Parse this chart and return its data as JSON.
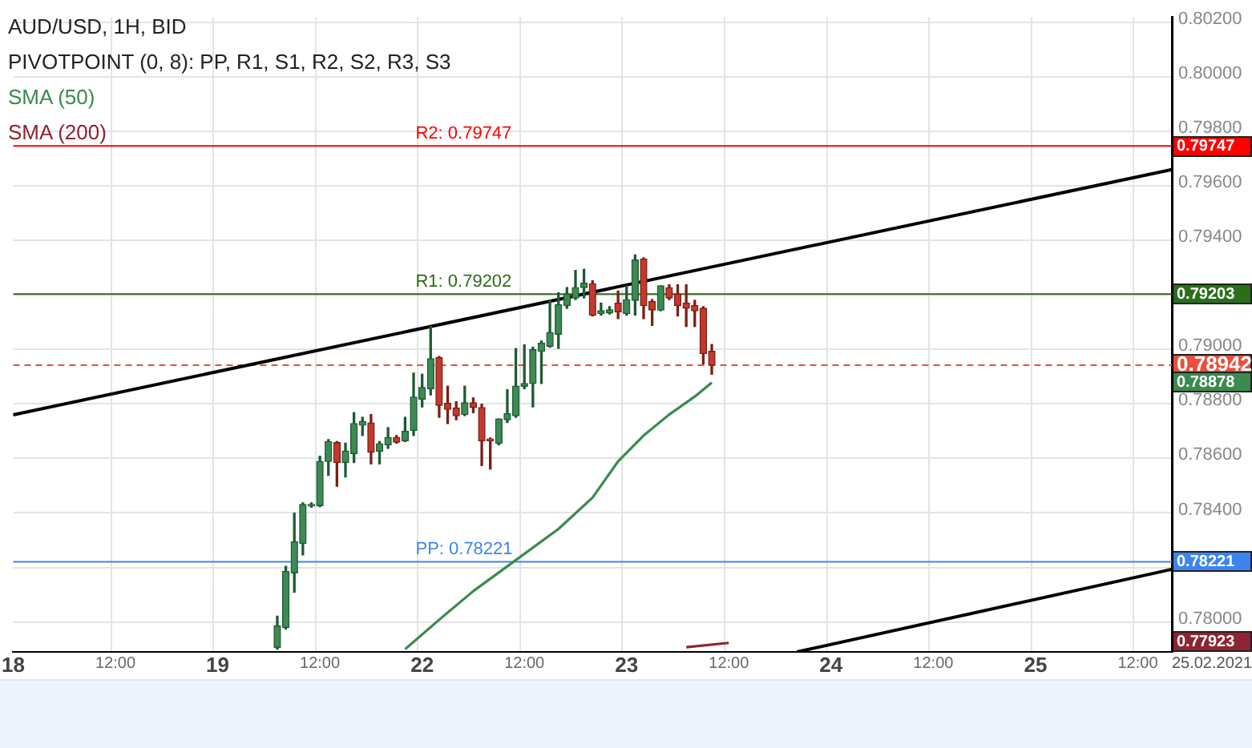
{
  "chart_data": {
    "type": "candlestick",
    "title": "AUD/USD, 1H, BID",
    "subtitle": "PIVOTPOINT (0, 8): PP, R1, S1, R2, S2, R3, S3",
    "categories": [
      "18",
      null,
      null,
      null,
      null,
      null,
      null,
      null,
      null,
      null,
      null,
      null,
      "12:00",
      null,
      null,
      null,
      null,
      null,
      null,
      null,
      null,
      null,
      null,
      null,
      "19",
      null,
      null,
      null,
      null,
      null,
      null,
      null,
      null,
      null,
      null,
      null,
      "12:00",
      null,
      null,
      null,
      null,
      null,
      null,
      null,
      null,
      null,
      null,
      null,
      "22",
      null,
      null,
      null,
      null,
      null,
      null,
      null,
      null,
      null,
      null,
      null,
      "12:00",
      null,
      null,
      null,
      null,
      null,
      null,
      null,
      null,
      null,
      null,
      null,
      "23",
      null,
      null,
      null,
      null,
      null,
      null,
      null,
      null,
      null,
      null,
      null,
      "12:00",
      null,
      null,
      null,
      null,
      null,
      null,
      null,
      null,
      null,
      null,
      null,
      "24",
      null,
      null,
      null,
      null,
      null,
      null,
      null,
      null,
      null,
      null,
      null,
      "12:00",
      null,
      null,
      null,
      null,
      null,
      null,
      null,
      null,
      null,
      null,
      null,
      "25",
      null,
      null,
      null,
      null,
      null,
      null,
      null,
      null,
      null,
      null,
      null,
      "12:00",
      null,
      null,
      null,
      null
    ],
    "ohlc": [
      null,
      null,
      null,
      null,
      null,
      null,
      null,
      null,
      null,
      null,
      null,
      null,
      null,
      null,
      null,
      null,
      null,
      null,
      null,
      null,
      null,
      null,
      null,
      null,
      null,
      null,
      null,
      null,
      null,
      null,
      null,
      [
        0.77907,
        0.78021,
        0.779,
        0.77985
      ],
      [
        0.7798,
        0.78204,
        0.77974,
        0.78185
      ],
      [
        0.7818,
        0.78399,
        0.78109,
        0.78294
      ],
      [
        0.78288,
        0.78437,
        0.78246,
        0.78431
      ],
      [
        0.78425,
        0.78437,
        0.78421,
        0.78431
      ],
      [
        0.78427,
        0.78608,
        0.78423,
        0.78589
      ],
      [
        0.78589,
        0.78669,
        0.78538,
        0.78662
      ],
      [
        0.78658,
        0.78662,
        0.78498,
        0.78585
      ],
      [
        0.78585,
        0.78656,
        0.78532,
        0.78627
      ],
      [
        0.78618,
        0.78768,
        0.78585,
        0.78728
      ],
      [
        0.78722,
        0.78751,
        0.78684,
        0.78736
      ],
      [
        0.7873,
        0.78761,
        0.7858,
        0.78623
      ],
      [
        0.78627,
        0.78662,
        0.7858,
        0.78654
      ],
      [
        0.7865,
        0.78713,
        0.78637,
        0.78677
      ],
      [
        0.78677,
        0.78684,
        0.78656,
        0.7866
      ],
      [
        0.78665,
        0.78751,
        0.78662,
        0.787
      ],
      [
        0.78703,
        0.78913,
        0.78684,
        0.78825
      ],
      [
        0.78818,
        0.78909,
        0.78789,
        0.7886
      ],
      [
        0.78856,
        0.79084,
        0.78833,
        0.78966
      ],
      [
        0.7897,
        0.78974,
        0.78751,
        0.78795
      ],
      [
        0.78802,
        0.78865,
        0.78728,
        0.7878
      ],
      [
        0.78785,
        0.78808,
        0.78742,
        0.78757
      ],
      [
        0.78761,
        0.78865,
        0.78757,
        0.78804
      ],
      [
        0.78804,
        0.78822,
        0.78768,
        0.78787
      ],
      [
        0.78787,
        0.78799,
        0.78574,
        0.78665
      ],
      [
        0.78671,
        0.78675,
        0.78561,
        0.78665
      ],
      [
        0.78656,
        0.78745,
        0.7865,
        0.78745
      ],
      [
        0.78742,
        0.78852,
        0.78732,
        0.78764
      ],
      [
        0.78757,
        0.79003,
        0.78751,
        0.78865
      ],
      [
        0.78865,
        0.79017,
        0.78856,
        0.78875
      ],
      [
        0.78875,
        0.79008,
        0.78789,
        0.78999
      ],
      [
        0.78993,
        0.79031,
        0.78875,
        0.79023
      ],
      [
        0.79012,
        0.7918,
        0.79008,
        0.79062
      ],
      [
        0.79056,
        0.79208,
        0.79004,
        0.79164
      ],
      [
        0.79161,
        0.79227,
        0.79151,
        0.79203
      ],
      [
        0.79189,
        0.7929,
        0.79183,
        0.79227
      ],
      [
        0.79227,
        0.79294,
        0.79189,
        0.79243
      ],
      [
        0.79241,
        0.79252,
        0.79123,
        0.79126
      ],
      [
        0.79132,
        0.7917,
        0.79126,
        0.79142
      ],
      [
        0.79134,
        0.79157,
        0.7913,
        0.79145
      ],
      [
        0.7917,
        0.79214,
        0.79113,
        0.79138
      ],
      [
        0.79132,
        0.79233,
        0.79126,
        0.79183
      ],
      [
        0.7918,
        0.79347,
        0.79126,
        0.79328
      ],
      [
        0.79332,
        0.79336,
        0.79113,
        0.79161
      ],
      [
        0.79176,
        0.79183,
        0.79088,
        0.79145
      ],
      [
        0.79145,
        0.79233,
        0.79142,
        0.79233
      ],
      [
        0.79227,
        0.79237,
        0.79183,
        0.79189
      ],
      [
        0.79203,
        0.79237,
        0.79123,
        0.79161
      ],
      [
        0.7917,
        0.79237,
        0.79084,
        0.79151
      ],
      [
        0.79161,
        0.7918,
        0.79084,
        0.79142
      ],
      [
        0.79151,
        0.79157,
        0.78947,
        0.78985
      ],
      [
        0.78993,
        0.79018,
        0.78909,
        0.78942
      ],
      null,
      null,
      null,
      null,
      null,
      null,
      null,
      null,
      null,
      null,
      null,
      null,
      null,
      null,
      null,
      null,
      null,
      null,
      null,
      null,
      null,
      null,
      null,
      null,
      null,
      null,
      null,
      null,
      null,
      null,
      null,
      null,
      null,
      null,
      null,
      null,
      null,
      null,
      null,
      null,
      null,
      null,
      null,
      null,
      null,
      null,
      null,
      null,
      null,
      null,
      null,
      null,
      null,
      null
    ],
    "series": [
      {
        "name": "SMA (50)",
        "type": "line",
        "color": "#3b8a4e",
        "values": [
          null,
          null,
          null,
          null,
          null,
          null,
          null,
          null,
          null,
          null,
          null,
          null,
          null,
          null,
          null,
          null,
          null,
          null,
          null,
          null,
          null,
          null,
          null,
          null,
          null,
          null,
          null,
          null,
          null,
          null,
          null,
          null,
          null,
          null,
          null,
          null,
          null,
          null,
          null,
          null,
          null,
          null,
          null,
          null,
          null,
          null,
          0.779,
          null,
          null,
          null,
          0.78008,
          null,
          null,
          null,
          0.78113,
          null,
          null,
          null,
          null,
          0.78227,
          null,
          null,
          null,
          null,
          0.78341,
          null,
          null,
          null,
          0.78456,
          null,
          null,
          0.78589,
          null,
          null,
          0.78684,
          null,
          null,
          0.78761,
          null,
          null,
          0.78827,
          null,
          0.78878,
          null,
          null,
          null,
          null,
          null,
          null,
          null,
          null,
          null,
          null,
          null,
          null,
          null,
          null,
          null,
          null,
          null,
          null,
          null,
          null,
          null,
          null,
          null,
          null,
          null,
          null,
          null,
          null,
          null,
          null,
          null,
          null,
          null,
          null,
          null,
          null,
          null,
          null,
          null,
          null,
          null,
          null,
          null,
          null,
          null,
          null,
          null,
          null,
          null,
          null,
          null,
          null,
          null,
          null
        ]
      },
      {
        "name": "SMA (200)",
        "type": "line",
        "color": "#8e2431",
        "values": [
          null,
          null,
          null,
          null,
          null,
          null,
          null,
          null,
          null,
          null,
          null,
          null,
          null,
          null,
          null,
          null,
          null,
          null,
          null,
          null,
          null,
          null,
          null,
          null,
          null,
          null,
          null,
          null,
          null,
          null,
          null,
          null,
          null,
          null,
          null,
          null,
          null,
          null,
          null,
          null,
          null,
          null,
          null,
          null,
          null,
          null,
          null,
          null,
          null,
          null,
          null,
          null,
          null,
          null,
          null,
          null,
          null,
          null,
          null,
          null,
          null,
          null,
          null,
          null,
          null,
          null,
          null,
          null,
          null,
          null,
          null,
          null,
          null,
          null,
          null,
          null,
          null,
          null,
          null,
          0.77907,
          null,
          null,
          null,
          null,
          0.77923,
          null,
          null,
          null,
          null,
          null,
          null,
          null,
          null,
          null,
          null,
          null,
          null,
          null,
          null,
          null,
          null,
          null,
          null,
          null,
          null,
          null,
          null,
          null,
          null,
          null,
          null,
          null,
          null,
          null,
          null,
          null,
          null,
          null,
          null,
          null,
          null,
          null,
          null,
          null,
          null,
          null,
          null,
          null,
          null,
          null,
          null,
          null,
          null,
          null,
          null,
          null,
          null
        ]
      },
      {
        "type": "line",
        "color": "#000000",
        "values": [
          0.7876,
          null,
          null,
          null,
          null,
          null,
          null,
          null,
          null,
          null,
          null,
          null,
          null,
          null,
          null,
          null,
          null,
          null,
          null,
          null,
          null,
          null,
          null,
          null,
          null,
          null,
          null,
          null,
          null,
          null,
          null,
          null,
          null,
          null,
          null,
          null,
          null,
          null,
          null,
          null,
          null,
          null,
          null,
          null,
          null,
          null,
          null,
          null,
          null,
          null,
          null,
          null,
          null,
          null,
          null,
          null,
          null,
          null,
          null,
          null,
          null,
          null,
          null,
          null,
          null,
          null,
          null,
          null,
          null,
          null,
          null,
          null,
          null,
          null,
          null,
          null,
          null,
          null,
          null,
          null,
          null,
          null,
          null,
          null,
          null,
          null,
          null,
          null,
          null,
          null,
          null,
          null,
          null,
          null,
          null,
          null,
          null,
          null,
          null,
          null,
          null,
          null,
          null,
          null,
          null,
          null,
          null,
          null,
          null,
          null,
          null,
          null,
          null,
          null,
          null,
          null,
          null,
          null,
          null,
          null,
          null,
          null,
          null,
          null,
          null,
          null,
          null,
          null,
          null,
          null,
          null,
          null,
          null,
          null,
          null,
          null,
          0.7966
        ]
      },
      {
        "type": "line",
        "color": "#000000",
        "values": [
          null,
          null,
          null,
          null,
          null,
          null,
          null,
          null,
          null,
          null,
          null,
          null,
          null,
          null,
          null,
          null,
          null,
          null,
          null,
          null,
          null,
          null,
          null,
          null,
          null,
          null,
          null,
          null,
          null,
          null,
          null,
          null,
          null,
          null,
          null,
          null,
          null,
          null,
          null,
          null,
          null,
          null,
          null,
          null,
          null,
          null,
          null,
          null,
          null,
          null,
          null,
          null,
          null,
          null,
          null,
          null,
          null,
          null,
          null,
          null,
          null,
          null,
          null,
          null,
          null,
          null,
          null,
          null,
          null,
          null,
          null,
          null,
          null,
          null,
          null,
          null,
          null,
          null,
          null,
          null,
          null,
          null,
          null,
          null,
          null,
          null,
          null,
          null,
          null,
          null,
          null,
          null,
          0.7789,
          null,
          null,
          null,
          null,
          null,
          null,
          null,
          null,
          null,
          null,
          null,
          null,
          null,
          null,
          null,
          null,
          null,
          null,
          null,
          null,
          null,
          null,
          null,
          null,
          null,
          null,
          null,
          null,
          null,
          null,
          null,
          null,
          null,
          null,
          null,
          null,
          null,
          null,
          null,
          null,
          null,
          null,
          null,
          0.78193
        ]
      }
    ],
    "ref_lines": [
      {
        "axis": "y",
        "value": 0.79747,
        "label": "R2: 0.79747",
        "color": "#ff0000"
      },
      {
        "axis": "y",
        "value": 0.79203,
        "label": "R1: 0.79202",
        "color": "#2a6e1a"
      },
      {
        "axis": "y",
        "value": 0.78221,
        "label": "PP: 0.78221",
        "color": "#3c84f0"
      },
      {
        "axis": "y",
        "value": 0.78942,
        "color": "#e8503a",
        "line_style": "dashed"
      }
    ],
    "annotations": [
      "25.02.2021"
    ],
    "ylim": [
      0.7789,
      0.8022
    ],
    "yticks": [
      {
        "value": 0.78,
        "label": "0.78000"
      },
      {
        "value": 0.782,
        "label": null
      },
      {
        "value": 0.784,
        "label": "0.78400"
      },
      {
        "value": 0.786,
        "label": "0.78600"
      },
      {
        "value": 0.788,
        "label": "0.78800"
      },
      {
        "value": 0.79,
        "label": "0.79000"
      },
      {
        "value": 0.792,
        "label": null
      },
      {
        "value": 0.794,
        "label": "0.79400"
      },
      {
        "value": 0.796,
        "label": "0.79600"
      },
      {
        "value": 0.798,
        "label": "0.79800"
      },
      {
        "value": 0.8,
        "label": "0.80000"
      },
      {
        "value": 0.802,
        "label": "0.80200"
      }
    ],
    "y2lim": [
      0.7789,
      0.8022
    ],
    "y2ticks": [
      0.79747,
      0.79203,
      0.78942,
      0.78878,
      0.78221,
      0.77923
    ],
    "grid": true,
    "legend": "top left"
  }
}
